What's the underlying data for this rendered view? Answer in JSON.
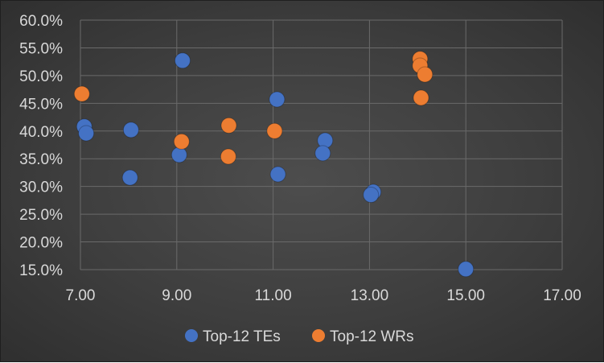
{
  "chart_data": {
    "type": "scatter",
    "title": "",
    "xlabel": "",
    "ylabel": "",
    "xlim": [
      7,
      17
    ],
    "ylim": [
      0.15,
      0.6
    ],
    "x_ticks": [
      7,
      9,
      11,
      13,
      15,
      17
    ],
    "x_tick_labels": [
      "7.00",
      "9.00",
      "11.00",
      "13.00",
      "15.00",
      "17.00"
    ],
    "y_ticks": [
      0.15,
      0.2,
      0.25,
      0.3,
      0.35,
      0.4,
      0.45,
      0.5,
      0.55,
      0.6
    ],
    "y_tick_labels": [
      "15.0%",
      "20.0%",
      "25.0%",
      "30.0%",
      "35.0%",
      "40.0%",
      "45.0%",
      "50.0%",
      "55.0%",
      "60.0%"
    ],
    "grid": true,
    "legend_position": "bottom",
    "series": [
      {
        "name": "Top-12 TEs",
        "color": "#4472c4",
        "points": [
          {
            "x": 7.08,
            "y": 0.408
          },
          {
            "x": 7.12,
            "y": 0.396
          },
          {
            "x": 8.05,
            "y": 0.402
          },
          {
            "x": 8.03,
            "y": 0.316
          },
          {
            "x": 9.05,
            "y": 0.357
          },
          {
            "x": 9.12,
            "y": 0.527
          },
          {
            "x": 11.08,
            "y": 0.457
          },
          {
            "x": 11.1,
            "y": 0.322
          },
          {
            "x": 12.08,
            "y": 0.383
          },
          {
            "x": 12.03,
            "y": 0.36
          },
          {
            "x": 13.08,
            "y": 0.29
          },
          {
            "x": 13.03,
            "y": 0.285
          },
          {
            "x": 15.0,
            "y": 0.151
          }
        ]
      },
      {
        "name": "Top-12 WRs",
        "color": "#ed7d31",
        "points": [
          {
            "x": 7.03,
            "y": 0.467
          },
          {
            "x": 9.1,
            "y": 0.381
          },
          {
            "x": 10.08,
            "y": 0.41
          },
          {
            "x": 10.07,
            "y": 0.354
          },
          {
            "x": 11.03,
            "y": 0.4
          },
          {
            "x": 14.05,
            "y": 0.53
          },
          {
            "x": 14.05,
            "y": 0.518
          },
          {
            "x": 14.15,
            "y": 0.502
          },
          {
            "x": 14.07,
            "y": 0.46
          }
        ]
      }
    ]
  }
}
